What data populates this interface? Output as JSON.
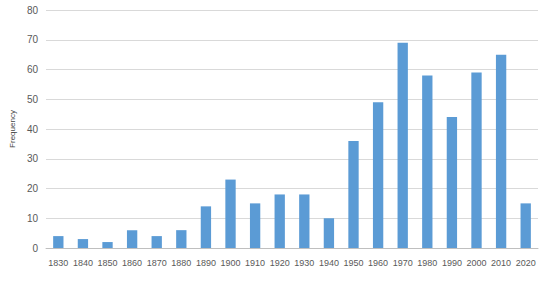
{
  "chart_data": {
    "type": "bar",
    "y_label": "Frequency",
    "categories": [
      "1830",
      "1840",
      "1850",
      "1860",
      "1870",
      "1880",
      "1890",
      "1900",
      "1910",
      "1920",
      "1930",
      "1940",
      "1950",
      "1960",
      "1970",
      "1980",
      "1990",
      "2000",
      "2010",
      "2020"
    ],
    "values": [
      4,
      3,
      2,
      6,
      4,
      6,
      14,
      23,
      15,
      18,
      18,
      10,
      36,
      49,
      69,
      58,
      44,
      59,
      65,
      15
    ],
    "color": "#5b9bd5",
    "ylim": [
      0,
      80
    ],
    "yticks": [
      0,
      10,
      20,
      30,
      40,
      50,
      60,
      70,
      80
    ],
    "grid": true
  }
}
